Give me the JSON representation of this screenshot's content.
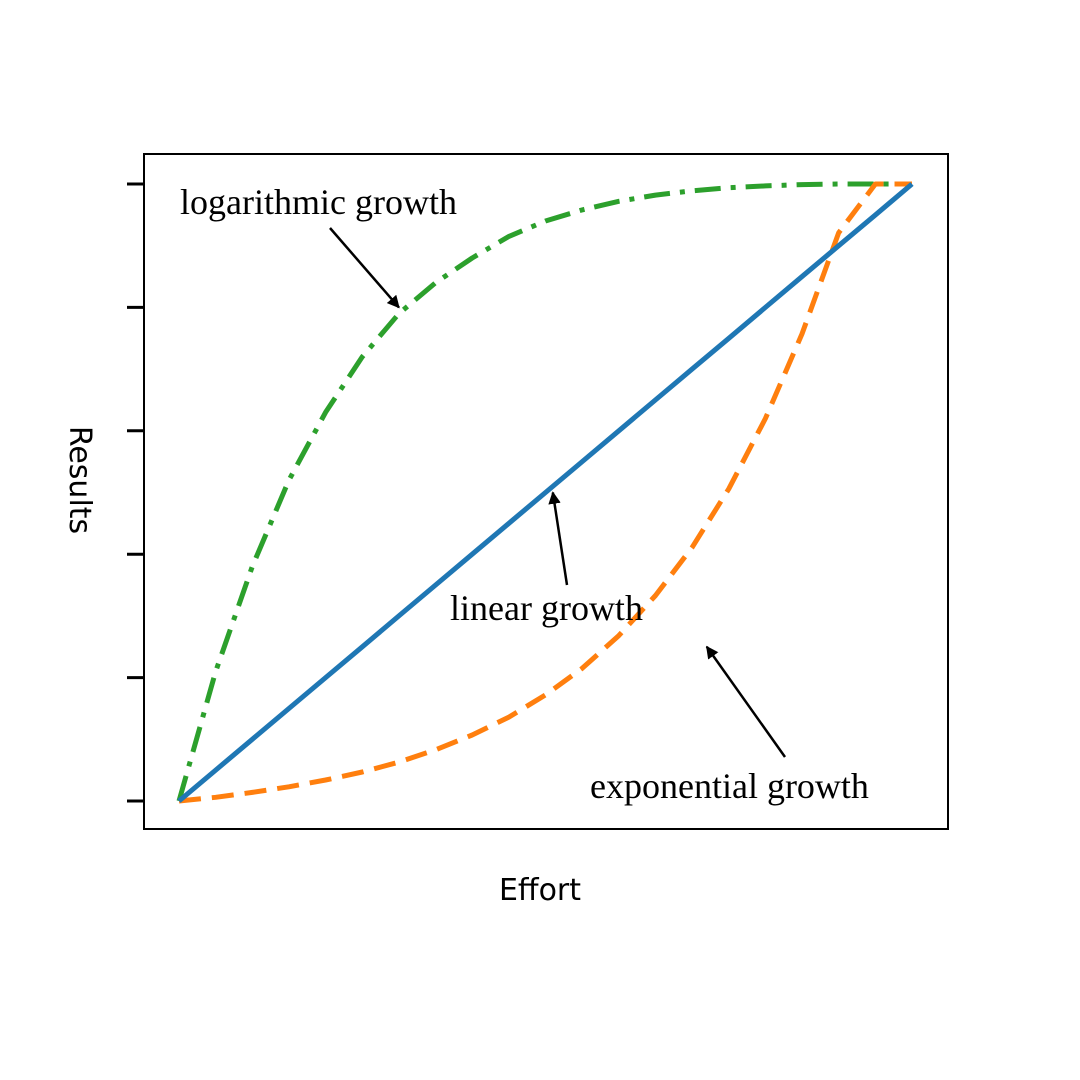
{
  "chart_data": {
    "type": "line",
    "title": "",
    "xlabel": "Effort",
    "ylabel": "Results",
    "xlim": [
      0,
      1
    ],
    "ylim": [
      0,
      1
    ],
    "x_ticks": [],
    "y_ticks": [
      0,
      0.2,
      0.4,
      0.6,
      0.8,
      1.0
    ],
    "grid": false,
    "x": [
      0,
      0.05,
      0.1,
      0.15,
      0.2,
      0.25,
      0.3,
      0.35,
      0.4,
      0.45,
      0.5,
      0.55,
      0.6,
      0.65,
      0.7,
      0.75,
      0.8,
      0.85,
      0.9,
      0.95,
      1.0
    ],
    "series": [
      {
        "key": "linear",
        "color": "#1f77b4",
        "style": "solid",
        "values": [
          0,
          0.05,
          0.1,
          0.15,
          0.2,
          0.25,
          0.3,
          0.35,
          0.4,
          0.45,
          0.5,
          0.55,
          0.6,
          0.65,
          0.7,
          0.75,
          0.8,
          0.85,
          0.9,
          0.95,
          1.0
        ]
      },
      {
        "key": "exponential",
        "color": "#ff7f0e",
        "style": "dashed",
        "values": [
          0,
          0.006,
          0.014,
          0.023,
          0.034,
          0.047,
          0.063,
          0.083,
          0.107,
          0.136,
          0.172,
          0.215,
          0.268,
          0.333,
          0.411,
          0.506,
          0.62,
          0.757,
          0.921,
          1.0,
          1.0
        ]
      },
      {
        "key": "logarithmic",
        "color": "#2ca02c",
        "style": "dashdot",
        "values": [
          0,
          0.21,
          0.38,
          0.52,
          0.63,
          0.72,
          0.79,
          0.84,
          0.88,
          0.915,
          0.94,
          0.958,
          0.972,
          0.982,
          0.989,
          0.994,
          0.997,
          0.999,
          1.0,
          1.0,
          1.0
        ]
      }
    ],
    "annotations": [
      {
        "text": "logarithmic growth",
        "series": "logarithmic",
        "arrow_target": [
          0.3,
          0.8
        ]
      },
      {
        "text": "linear growth",
        "series": "linear",
        "arrow_target": [
          0.51,
          0.5
        ]
      },
      {
        "text": "exponential growth",
        "series": "exponential",
        "arrow_target": [
          0.72,
          0.25
        ]
      }
    ]
  }
}
